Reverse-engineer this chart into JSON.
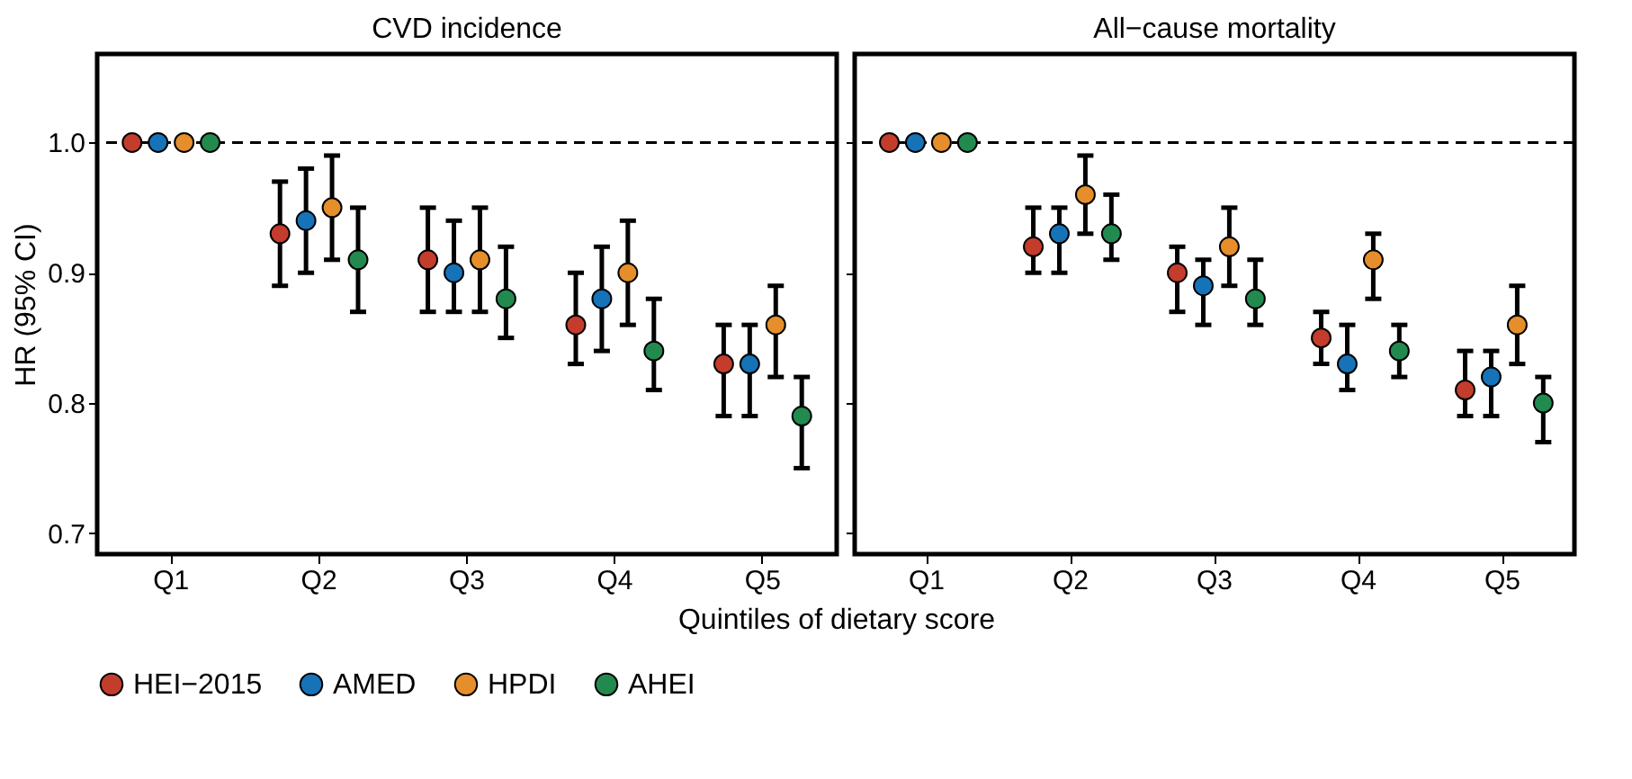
{
  "chart_data": [
    {
      "type": "scatter",
      "title": "CVD incidence",
      "xlabel": "Quintiles of dietary score",
      "ylabel": "HR (95% CI)",
      "categories": [
        "Q1",
        "Q2",
        "Q3",
        "Q4",
        "Q5"
      ],
      "ylim": [
        0.684,
        1.068
      ],
      "yticks": [
        0.7,
        0.8,
        0.9,
        {
          "value": 1,
          "label": "1.0"
        }
      ],
      "grid": false,
      "legend": "bottom",
      "marker": "circle",
      "ref_lines": [
        {
          "axis": "y",
          "value": 1,
          "line_style": "dashed",
          "color": "#000000"
        }
      ],
      "series": [
        {
          "name": "HEI−2015",
          "color": "#c43c2c",
          "values": [
            1,
            0.93,
            0.91,
            0.86,
            0.83
          ],
          "errors": [
            null,
            [
              0.89,
              0.97
            ],
            [
              0.87,
              0.95
            ],
            [
              0.83,
              0.9
            ],
            [
              0.79,
              0.86
            ]
          ]
        },
        {
          "name": "AMED",
          "color": "#1673b8",
          "values": [
            1,
            0.94,
            0.9,
            0.88,
            0.83
          ],
          "errors": [
            null,
            [
              0.9,
              0.98
            ],
            [
              0.87,
              0.94
            ],
            [
              0.84,
              0.92
            ],
            [
              0.79,
              0.86
            ]
          ]
        },
        {
          "name": "HPDI",
          "color": "#e58e2b",
          "values": [
            1,
            0.95,
            0.91,
            0.9,
            0.86
          ],
          "errors": [
            null,
            [
              0.91,
              0.99
            ],
            [
              0.87,
              0.95
            ],
            [
              0.86,
              0.94
            ],
            [
              0.82,
              0.89
            ]
          ]
        },
        {
          "name": "AHEI",
          "color": "#238a4f",
          "values": [
            1,
            0.91,
            0.88,
            0.84,
            0.79
          ],
          "errors": [
            null,
            [
              0.87,
              0.95
            ],
            [
              0.85,
              0.92
            ],
            [
              0.81,
              0.88
            ],
            [
              0.75,
              0.82
            ]
          ]
        }
      ]
    },
    {
      "type": "scatter",
      "title": "All−cause mortality",
      "categories": [
        "Q1",
        "Q2",
        "Q3",
        "Q4",
        "Q5"
      ],
      "ylim": [
        0.684,
        1.068
      ],
      "yticks": [
        0.7,
        0.8,
        0.9,
        1
      ],
      "tick_labels": "x",
      "grid": false,
      "legend": "bottom",
      "marker": "circle",
      "ref_lines": [
        {
          "axis": "y",
          "value": 1,
          "line_style": "dashed",
          "color": "#000000"
        }
      ],
      "series": [
        {
          "name": "HEI−2015",
          "color": "#c43c2c",
          "values": [
            1,
            0.92,
            0.9,
            0.85,
            0.81
          ],
          "errors": [
            null,
            [
              0.9,
              0.95
            ],
            [
              0.87,
              0.92
            ],
            [
              0.83,
              0.87
            ],
            [
              0.79,
              0.84
            ]
          ]
        },
        {
          "name": "AMED",
          "color": "#1673b8",
          "values": [
            1,
            0.93,
            0.89,
            0.83,
            0.82
          ],
          "errors": [
            null,
            [
              0.9,
              0.95
            ],
            [
              0.86,
              0.91
            ],
            [
              0.81,
              0.86
            ],
            [
              0.79,
              0.84
            ]
          ]
        },
        {
          "name": "HPDI",
          "color": "#e58e2b",
          "values": [
            1,
            0.96,
            0.92,
            0.91,
            0.86
          ],
          "errors": [
            null,
            [
              0.93,
              0.99
            ],
            [
              0.89,
              0.95
            ],
            [
              0.88,
              0.93
            ],
            [
              0.83,
              0.89
            ]
          ]
        },
        {
          "name": "AHEI",
          "color": "#238a4f",
          "values": [
            1,
            0.93,
            0.88,
            0.84,
            0.8
          ],
          "errors": [
            null,
            [
              0.91,
              0.96
            ],
            [
              0.86,
              0.91
            ],
            [
              0.82,
              0.86
            ],
            [
              0.77,
              0.82
            ]
          ]
        }
      ]
    }
  ]
}
